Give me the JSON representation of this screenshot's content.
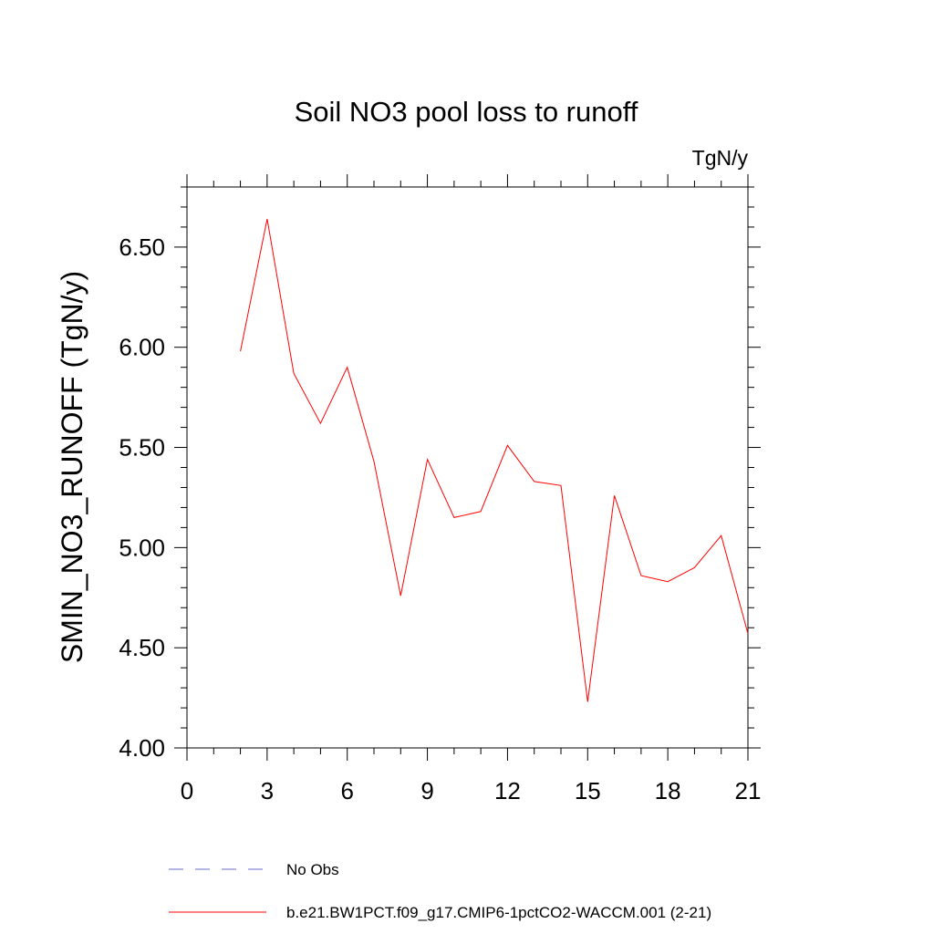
{
  "chart_data": {
    "type": "line",
    "title": "Soil NO3 pool loss to runoff",
    "units_label": "TgN/y",
    "ylabel": "SMIN_NO3_RUNOFF  (TgN/y)",
    "xlabel": "",
    "xlim": [
      0,
      21
    ],
    "ylim": [
      4.0,
      6.8
    ],
    "x_ticks": [
      0,
      3,
      6,
      9,
      12,
      15,
      18,
      21
    ],
    "x_tick_labels": [
      "0",
      "3",
      "6",
      "9",
      "12",
      "15",
      "18",
      "21"
    ],
    "y_ticks": [
      4.0,
      4.5,
      5.0,
      5.5,
      6.0,
      6.5
    ],
    "y_tick_labels": [
      "4.00",
      "4.50",
      "5.00",
      "5.50",
      "6.00",
      "6.50"
    ],
    "grid": false,
    "legend_position": "bottom",
    "series": [
      {
        "name": "No Obs",
        "color": "#6a6acd",
        "style": "dashed",
        "x": [],
        "values": []
      },
      {
        "name": "b.e21.BW1PCT.f09_g17.CMIP6-1pctCO2-WACCM.001 (2-21)",
        "color": "#ff0000",
        "style": "solid",
        "x": [
          2,
          3,
          4,
          5,
          6,
          7,
          8,
          9,
          10,
          11,
          12,
          13,
          14,
          15,
          16,
          17,
          18,
          19,
          20,
          21
        ],
        "values": [
          5.98,
          6.64,
          5.87,
          5.62,
          5.9,
          5.43,
          4.76,
          5.44,
          5.15,
          5.18,
          5.51,
          5.33,
          5.31,
          4.23,
          5.26,
          4.86,
          4.83,
          4.9,
          5.06,
          4.57
        ]
      }
    ]
  }
}
